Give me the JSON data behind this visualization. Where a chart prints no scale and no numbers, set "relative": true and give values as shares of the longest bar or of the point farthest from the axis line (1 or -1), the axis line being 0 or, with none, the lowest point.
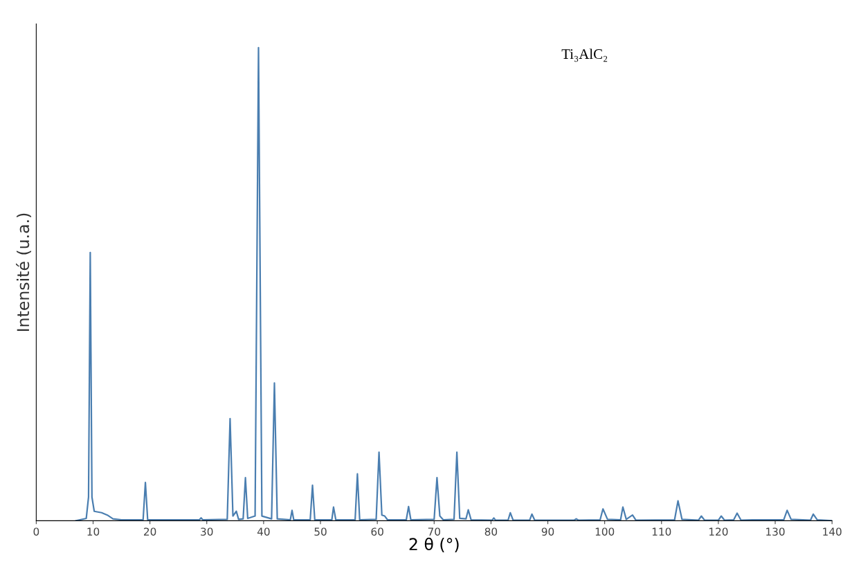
{
  "chart_data": {
    "type": "line",
    "xlabel": "2 θ (°)",
    "ylabel": "Intensité (u.a.)",
    "annotations": [
      "Ti₃AlC₂"
    ],
    "relative": true,
    "xlim": [
      0,
      140
    ],
    "xticks": [
      0,
      10,
      20,
      30,
      40,
      50,
      60,
      70,
      80,
      90,
      100,
      110,
      120,
      130,
      140
    ],
    "grid": false,
    "legend": false,
    "marker": "none",
    "line_style": "solid",
    "x": [
      7.0,
      8.8,
      9.2,
      9.5,
      9.8,
      10.2,
      11.5,
      12.5,
      13.5,
      15,
      18.8,
      19.2,
      19.6,
      28.7,
      29.0,
      29.3,
      33.6,
      34.1,
      34.6,
      35.2,
      35.6,
      36.4,
      36.8,
      37.2,
      38.5,
      39.1,
      39.7,
      41.4,
      41.9,
      42.4,
      44.7,
      45.0,
      45.3,
      48.2,
      48.6,
      49.0,
      52.0,
      52.3,
      52.7,
      56.1,
      56.5,
      56.9,
      59.8,
      60.3,
      60.8,
      61.3,
      61.8,
      65.1,
      65.5,
      65.9,
      70.0,
      70.5,
      71.0,
      71.6,
      73.5,
      74.0,
      74.5,
      75.6,
      76.0,
      76.5,
      80.2,
      80.5,
      80.8,
      83.0,
      83.4,
      83.9,
      86.8,
      87.2,
      87.7,
      94.6,
      95.0,
      95.4,
      99.2,
      99.7,
      100.5,
      102.8,
      103.2,
      103.8,
      104.9,
      105.5,
      112.3,
      112.9,
      113.6,
      116.5,
      117.0,
      117.6,
      120.0,
      120.5,
      121.1,
      122.7,
      123.3,
      124.0,
      126.0,
      131.5,
      132.1,
      132.8,
      136.2,
      136.7,
      137.4,
      140
    ],
    "series": [
      {
        "color": "#4a7eb0",
        "values": [
          0,
          0.005,
          0.05,
          0.567,
          0.05,
          0.02,
          0.017,
          0.012,
          0.004,
          0.002,
          0.002,
          0.081,
          0.002,
          0.002,
          0.006,
          0.002,
          0.003,
          0.216,
          0.01,
          0.02,
          0.003,
          0.004,
          0.091,
          0.005,
          0.01,
          1.0,
          0.01,
          0.004,
          0.291,
          0.004,
          0.002,
          0.022,
          0.002,
          0.002,
          0.075,
          0.002,
          0.002,
          0.029,
          0.002,
          0.002,
          0.099,
          0.002,
          0.003,
          0.145,
          0.012,
          0.01,
          0.002,
          0.002,
          0.03,
          0.002,
          0.003,
          0.091,
          0.01,
          0.002,
          0.003,
          0.145,
          0.005,
          0.004,
          0.023,
          0.002,
          0.001,
          0.006,
          0.001,
          0.001,
          0.017,
          0.001,
          0.001,
          0.014,
          0.001,
          0.001,
          0.004,
          0.001,
          0.002,
          0.025,
          0.003,
          0.002,
          0.029,
          0.003,
          0.012,
          0.001,
          0.002,
          0.042,
          0.003,
          0.001,
          0.01,
          0.001,
          0.001,
          0.01,
          0.001,
          0.002,
          0.016,
          0.001,
          0.002,
          0.002,
          0.022,
          0.003,
          0.001,
          0.014,
          0.002,
          0
        ]
      }
    ]
  }
}
